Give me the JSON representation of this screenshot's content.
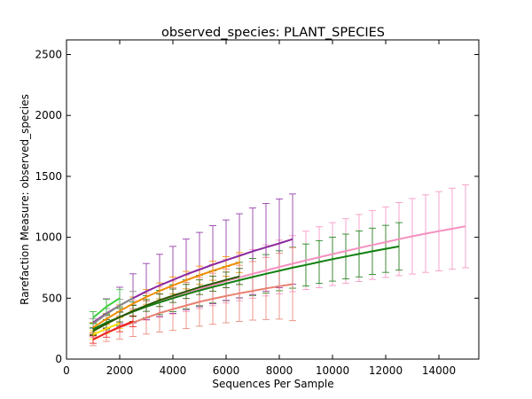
{
  "chart_data": {
    "type": "line",
    "title": "observed_species: PLANT_SPECIES",
    "xlabel": "Sequences Per Sample",
    "ylabel": "Rarefaction Measure: observed_species",
    "xlim": [
      0,
      15500
    ],
    "ylim": [
      0,
      2620
    ],
    "xticks": [
      0,
      2000,
      4000,
      6000,
      8000,
      10000,
      12000,
      14000
    ],
    "yticks": [
      0,
      500,
      1000,
      1500,
      2000,
      2500
    ],
    "x_tick_labels": [
      "0",
      "2000",
      "4000",
      "6000",
      "8000",
      "10000",
      "12000",
      "14000"
    ],
    "y_tick_labels": [
      "0",
      "500",
      "1000",
      "1500",
      "2000",
      "2500"
    ],
    "grid": false,
    "legend": "none",
    "series": [
      {
        "color": "#f590c0",
        "x": [
          1000,
          1500,
          2000,
          2500,
          3000,
          3500,
          4000,
          4500,
          5000,
          5500,
          6000,
          6500,
          7000,
          7500,
          8000,
          8500,
          9000,
          9500,
          10000,
          10500,
          11000,
          11500,
          12000,
          12500,
          13000,
          13500,
          14000,
          14500,
          15000
        ],
        "y": [
          240,
          295,
          345,
          390,
          430,
          468,
          505,
          540,
          575,
          608,
          640,
          670,
          700,
          728,
          756,
          783,
          810,
          836,
          862,
          887,
          912,
          937,
          960,
          985,
          1008,
          1030,
          1050,
          1070,
          1090
        ],
        "err": [
          60,
          70,
          80,
          95,
          110,
          125,
          135,
          150,
          160,
          170,
          180,
          190,
          200,
          210,
          220,
          230,
          240,
          250,
          258,
          265,
          275,
          283,
          290,
          300,
          310,
          318,
          325,
          333,
          340
        ]
      },
      {
        "color": "#118011",
        "x": [
          1000,
          1500,
          2000,
          2500,
          3000,
          3500,
          4000,
          4500,
          5000,
          5500,
          6000,
          6500,
          7000,
          7500,
          8000,
          8500,
          9000,
          9500,
          10000,
          10500,
          11000,
          11500,
          12000,
          12500
        ],
        "y": [
          245,
          300,
          345,
          390,
          430,
          465,
          500,
          532,
          563,
          592,
          620,
          648,
          674,
          700,
          725,
          750,
          773,
          797,
          820,
          842,
          863,
          885,
          905,
          925
        ],
        "err": [
          50,
          60,
          70,
          80,
          90,
          100,
          110,
          118,
          125,
          132,
          140,
          146,
          152,
          158,
          164,
          168,
          172,
          176,
          180,
          184,
          188,
          190,
          193,
          195
        ]
      },
      {
        "color": "#8b2aa0",
        "x": [
          1000,
          1500,
          2000,
          2500,
          3000,
          3500,
          4000,
          4500,
          5000,
          5500,
          6000,
          6500,
          7000,
          7500,
          8000,
          8500
        ],
        "y": [
          300,
          375,
          440,
          500,
          555,
          605,
          650,
          695,
          735,
          775,
          812,
          848,
          885,
          918,
          950,
          985
        ],
        "err": [
          90,
          120,
          150,
          200,
          230,
          255,
          275,
          290,
          305,
          320,
          330,
          345,
          355,
          360,
          365,
          370
        ]
      },
      {
        "color": "#f08c00",
        "x": [
          1000,
          1500,
          2000,
          2500,
          3000,
          3500,
          4000,
          4500,
          5000,
          5500,
          6000,
          6500
        ],
        "y": [
          260,
          330,
          395,
          455,
          510,
          560,
          605,
          648,
          688,
          725,
          760,
          793
        ],
        "err": [
          40,
          45,
          50,
          55,
          60,
          65,
          70,
          72,
          75,
          78,
          80,
          82
        ]
      },
      {
        "color": "#e88070",
        "x": [
          1000,
          1500,
          2000,
          2500,
          3000,
          3500,
          4000,
          4500,
          5000,
          5500,
          6000,
          6500,
          7000,
          7500,
          8000,
          8500
        ],
        "y": [
          160,
          215,
          260,
          300,
          340,
          378,
          410,
          440,
          470,
          495,
          518,
          540,
          560,
          580,
          598,
          615
        ],
        "err": [
          50,
          70,
          95,
          115,
          135,
          155,
          175,
          190,
          200,
          210,
          220,
          230,
          240,
          255,
          270,
          300
        ]
      },
      {
        "color": "#888888",
        "x": [
          1000,
          1500,
          2000,
          2500
        ],
        "y": [
          290,
          370,
          440,
          500
        ],
        "err": [
          40,
          45,
          50,
          55
        ]
      },
      {
        "color": "#40d040",
        "x": [
          1000,
          1500,
          2000
        ],
        "y": [
          340,
          430,
          500
        ],
        "err": [
          50,
          60,
          70
        ]
      },
      {
        "color": "#f5e000",
        "x": [
          1000,
          1500,
          2000
        ],
        "y": [
          200,
          250,
          295
        ],
        "err": [
          35,
          40,
          45
        ]
      },
      {
        "color": "#ee2020",
        "x": [
          1000,
          1500,
          2000,
          2500
        ],
        "y": [
          160,
          215,
          265,
          310
        ],
        "err": [
          30,
          35,
          40,
          45
        ]
      },
      {
        "color": "#2a5a00",
        "x": [
          1000,
          1500,
          2000,
          2500,
          3000,
          3500,
          4000,
          4500,
          5000,
          5500,
          6000,
          6500
        ],
        "y": [
          230,
          290,
          345,
          395,
          440,
          483,
          520,
          555,
          590,
          620,
          650,
          678
        ],
        "err": [
          30,
          35,
          40,
          45,
          48,
          52,
          55,
          58,
          60,
          62,
          64,
          66
        ]
      }
    ]
  }
}
